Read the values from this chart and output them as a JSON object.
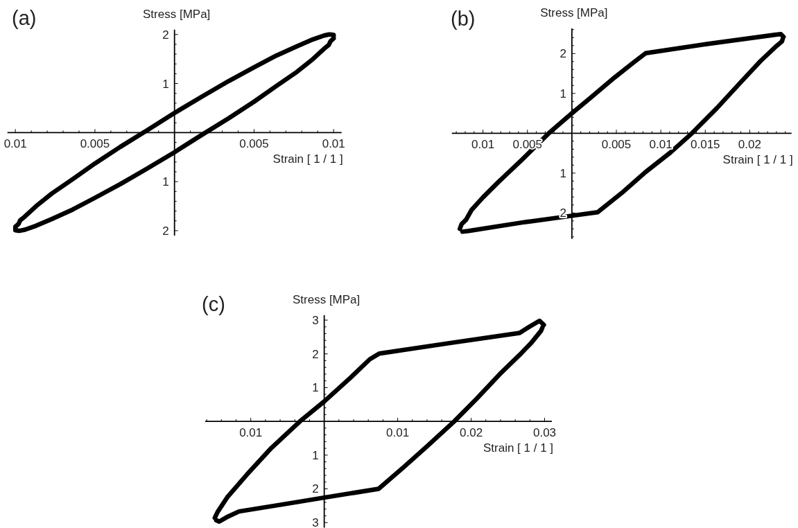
{
  "chart_data": [
    {
      "type": "line",
      "title": "(a)",
      "xlabel": "Strain [ 1 / 1 ]",
      "ylabel": "Stress [MPa]",
      "xlim": [
        -0.0105,
        0.0105
      ],
      "ylim": [
        -2.1,
        2.1
      ],
      "xticks": [
        {
          "value": -0.01,
          "label": "0.01"
        },
        {
          "value": -0.009,
          "label": null
        },
        {
          "value": -0.008,
          "label": null
        },
        {
          "value": -0.007,
          "label": null
        },
        {
          "value": -0.006,
          "label": null
        },
        {
          "value": -0.005,
          "label": "0.005"
        },
        {
          "value": -0.004,
          "label": null
        },
        {
          "value": -0.003,
          "label": null
        },
        {
          "value": -0.002,
          "label": null
        },
        {
          "value": -0.001,
          "label": null
        },
        {
          "value": 0.001,
          "label": null
        },
        {
          "value": 0.002,
          "label": null
        },
        {
          "value": 0.003,
          "label": null
        },
        {
          "value": 0.004,
          "label": null
        },
        0.005,
        {
          "value": 0.006,
          "label": null
        },
        {
          "value": 0.007,
          "label": null
        },
        {
          "value": 0.008,
          "label": null
        },
        {
          "value": 0.009,
          "label": null
        },
        0.01
      ],
      "yticks": [
        {
          "value": -2,
          "label": "2"
        },
        {
          "value": -1.8,
          "label": null
        },
        {
          "value": -1.6,
          "label": null
        },
        {
          "value": -1.4,
          "label": null
        },
        {
          "value": -1.2,
          "label": null
        },
        {
          "value": -1,
          "label": "1"
        },
        {
          "value": -0.8,
          "label": null
        },
        {
          "value": -0.6,
          "label": null
        },
        {
          "value": -0.4,
          "label": null
        },
        {
          "value": -0.2,
          "label": null
        },
        {
          "value": 0.2,
          "label": null
        },
        {
          "value": 0.4,
          "label": null
        },
        {
          "value": 0.6,
          "label": null
        },
        {
          "value": 0.8,
          "label": null
        },
        1,
        {
          "value": 1.2,
          "label": null
        },
        {
          "value": 1.4,
          "label": null
        },
        {
          "value": 1.6,
          "label": null
        },
        {
          "value": 1.8,
          "label": null
        },
        2
      ],
      "series": [
        {
          "color": "#000000",
          "x": [
            -0.01,
            -0.01,
            -0.0098,
            -0.0097,
            -0.0094,
            -0.0087,
            -0.0077,
            -0.0064,
            -0.005,
            -0.0034,
            -0.0017,
            0,
            0.0017,
            0.0034,
            0.005,
            0.0064,
            0.0077,
            0.0087,
            0.0094,
            0.0097,
            0.0098,
            0.01,
            0.01
          ],
          "values": [
            -1.96,
            -1.92,
            -1.86,
            -1.79,
            -1.71,
            -1.5,
            -1.24,
            -0.95,
            -0.63,
            -0.29,
            0.05,
            0.4,
            0.73,
            1.05,
            1.33,
            1.57,
            1.76,
            1.9,
            1.98,
            2.0,
            2.0,
            1.99,
            1.96
          ]
        },
        {
          "color": "#000000",
          "x": [
            0.01,
            0.0098,
            0.0097,
            0.0094,
            0.0087,
            0.0077,
            0.0064,
            0.005,
            0.0034,
            0.0017,
            0,
            -0.0017,
            -0.0034,
            -0.005,
            -0.0064,
            -0.0077,
            -0.0087,
            -0.0094,
            -0.0097,
            -0.0098,
            -0.01
          ],
          "values": [
            1.92,
            1.86,
            1.79,
            1.71,
            1.5,
            1.24,
            0.95,
            0.63,
            0.29,
            -0.05,
            -0.4,
            -0.73,
            -1.05,
            -1.33,
            -1.57,
            -1.76,
            -1.9,
            -1.98,
            -2.0,
            -2.0,
            -1.99
          ]
        }
      ]
    },
    {
      "type": "line",
      "title": "(b)",
      "xlabel": "Strain [ 1 / 1 ]",
      "ylabel": "Stress [MPa]",
      "xlim": [
        -0.0135,
        0.0247
      ],
      "ylim": [
        -2.65,
        2.63
      ],
      "xticks": [
        {
          "value": -0.013,
          "label": null
        },
        {
          "value": -0.012,
          "label": null
        },
        {
          "value": -0.011,
          "label": null
        },
        {
          "value": -0.01,
          "label": "0.01"
        },
        {
          "value": -0.009,
          "label": null
        },
        {
          "value": -0.008,
          "label": null
        },
        {
          "value": -0.007,
          "label": null
        },
        {
          "value": -0.006,
          "label": null
        },
        {
          "value": -0.005,
          "label": "0.005"
        },
        {
          "value": -0.004,
          "label": null
        },
        {
          "value": -0.003,
          "label": null
        },
        {
          "value": -0.002,
          "label": null
        },
        {
          "value": -0.001,
          "label": null
        },
        {
          "value": 0.001,
          "label": null
        },
        {
          "value": 0.002,
          "label": null
        },
        {
          "value": 0.003,
          "label": null
        },
        {
          "value": 0.004,
          "label": null
        },
        0.005,
        {
          "value": 0.006,
          "label": null
        },
        {
          "value": 0.007,
          "label": null
        },
        {
          "value": 0.008,
          "label": null
        },
        {
          "value": 0.009,
          "label": null
        },
        0.01,
        {
          "value": 0.011,
          "label": null
        },
        {
          "value": 0.012,
          "label": null
        },
        {
          "value": 0.013,
          "label": null
        },
        {
          "value": 0.014,
          "label": null
        },
        0.015,
        {
          "value": 0.016,
          "label": null
        },
        {
          "value": 0.017,
          "label": null
        },
        {
          "value": 0.018,
          "label": null
        },
        {
          "value": 0.019,
          "label": null
        },
        0.02,
        {
          "value": 0.021,
          "label": null
        },
        {
          "value": 0.022,
          "label": null
        },
        {
          "value": 0.023,
          "label": null
        },
        {
          "value": 0.024,
          "label": null
        }
      ],
      "yticks": [
        {
          "value": -2.6,
          "label": null
        },
        {
          "value": -2.4,
          "label": null
        },
        {
          "value": -2.2,
          "label": null
        },
        {
          "value": -2,
          "label": "2"
        },
        {
          "value": -1.8,
          "label": null
        },
        {
          "value": -1.6,
          "label": null
        },
        {
          "value": -1.4,
          "label": null
        },
        {
          "value": -1.2,
          "label": null
        },
        {
          "value": -1,
          "label": "1"
        },
        {
          "value": -0.8,
          "label": null
        },
        {
          "value": -0.6,
          "label": null
        },
        {
          "value": -0.4,
          "label": null
        },
        {
          "value": -0.2,
          "label": null
        },
        {
          "value": 0.2,
          "label": null
        },
        {
          "value": 0.4,
          "label": null
        },
        {
          "value": 0.6,
          "label": null
        },
        {
          "value": 0.8,
          "label": null
        },
        1,
        {
          "value": 1.2,
          "label": null
        },
        {
          "value": 1.4,
          "label": null
        },
        {
          "value": 1.6,
          "label": null
        },
        {
          "value": 1.8,
          "label": null
        },
        2,
        {
          "value": 2.2,
          "label": null
        },
        {
          "value": 2.4,
          "label": null
        },
        {
          "value": 2.6,
          "label": null
        }
      ],
      "series": [
        {
          "color": "#000000",
          "x": [
            -0.0126,
            -0.0124,
            -0.0119,
            -0.0113,
            -0.01,
            -0.0082,
            -0.0056,
            -0.0026,
            0,
            0.0022,
            0.0048,
            0.0069,
            0.0083,
            0.0152,
            0.0228,
            0.0235,
            0.0238
          ],
          "values": [
            -2.4,
            -2.28,
            -2.17,
            -1.93,
            -1.61,
            -1.21,
            -0.66,
            0,
            0.5,
            0.91,
            1.4,
            1.77,
            2.01,
            2.24,
            2.47,
            2.49,
            2.42
          ]
        },
        {
          "color": "#000000",
          "x": [
            0.0237,
            0.0236,
            0.023,
            0.0212,
            0.0189,
            0.0163,
            0.0135,
            0.0111,
            0.0083,
            0.0056,
            0.0029,
            0,
            -0.0056,
            -0.0116,
            -0.0123
          ],
          "values": [
            2.36,
            2.3,
            2.19,
            1.81,
            1.26,
            0.63,
            0,
            -0.48,
            -0.97,
            -1.5,
            -1.98,
            -2.07,
            -2.24,
            -2.45,
            -2.47
          ]
        }
      ]
    },
    {
      "type": "line",
      "title": "(c)",
      "xlabel": "Strain [ 1 / 1 ]",
      "ylabel": "Stress [MPa]",
      "xlim": [
        -0.0162,
        0.031
      ],
      "ylim": [
        -3.15,
        3.15
      ],
      "xticks": [
        {
          "value": -0.016,
          "label": null
        },
        {
          "value": -0.014,
          "label": null
        },
        {
          "value": -0.012,
          "label": null
        },
        {
          "value": -0.01,
          "label": "0.01"
        },
        {
          "value": -0.008,
          "label": null
        },
        {
          "value": -0.006,
          "label": null
        },
        {
          "value": -0.004,
          "label": null
        },
        {
          "value": -0.002,
          "label": null
        },
        {
          "value": 0.002,
          "label": null
        },
        {
          "value": 0.004,
          "label": null
        },
        {
          "value": 0.006,
          "label": null
        },
        {
          "value": 0.008,
          "label": null
        },
        0.01,
        {
          "value": 0.012,
          "label": null
        },
        {
          "value": 0.014,
          "label": null
        },
        {
          "value": 0.016,
          "label": null
        },
        {
          "value": 0.018,
          "label": null
        },
        0.02,
        {
          "value": 0.022,
          "label": null
        },
        {
          "value": 0.024,
          "label": null
        },
        {
          "value": 0.026,
          "label": null
        },
        {
          "value": 0.028,
          "label": null
        },
        0.03
      ],
      "yticks": [
        {
          "value": -3,
          "label": "3"
        },
        {
          "value": -2.8,
          "label": null
        },
        {
          "value": -2.6,
          "label": null
        },
        {
          "value": -2.4,
          "label": null
        },
        {
          "value": -2.2,
          "label": null
        },
        {
          "value": -2,
          "label": "2"
        },
        {
          "value": -1.8,
          "label": null
        },
        {
          "value": -1.6,
          "label": null
        },
        {
          "value": -1.4,
          "label": null
        },
        {
          "value": -1.2,
          "label": null
        },
        {
          "value": -1,
          "label": "1"
        },
        {
          "value": -0.8,
          "label": null
        },
        {
          "value": -0.6,
          "label": null
        },
        {
          "value": -0.4,
          "label": null
        },
        {
          "value": -0.2,
          "label": null
        },
        {
          "value": 0.2,
          "label": null
        },
        {
          "value": 0.4,
          "label": null
        },
        {
          "value": 0.6,
          "label": null
        },
        {
          "value": 0.8,
          "label": null
        },
        1,
        {
          "value": 1.2,
          "label": null
        },
        {
          "value": 1.4,
          "label": null
        },
        {
          "value": 1.6,
          "label": null
        },
        {
          "value": 1.8,
          "label": null
        },
        2,
        {
          "value": 2.2,
          "label": null
        },
        {
          "value": 2.4,
          "label": null
        },
        {
          "value": 2.6,
          "label": null
        },
        {
          "value": 2.8,
          "label": null
        },
        3
      ],
      "series": [
        {
          "color": "#000000",
          "x": [
            -0.0149,
            -0.0145,
            -0.0132,
            -0.0105,
            -0.0072,
            -0.0033,
            0,
            0.0036,
            0.0062,
            0.0075,
            0.0174,
            0.0266,
            0.0279,
            0.0293,
            0.0299
          ],
          "values": [
            -2.86,
            -2.68,
            -2.25,
            -1.57,
            -0.79,
            0,
            0.59,
            1.3,
            1.84,
            2.01,
            2.33,
            2.62,
            2.8,
            2.98,
            2.86
          ]
        },
        {
          "color": "#000000",
          "x": [
            0.0297,
            0.0295,
            0.0282,
            0.0266,
            0.0239,
            0.0207,
            0.0177,
            0.0141,
            0.0108,
            0.0074,
            0,
            -0.0056,
            -0.0116,
            -0.0131,
            -0.0143,
            -0.0147
          ],
          "values": [
            2.78,
            2.68,
            2.33,
            1.97,
            1.4,
            0.66,
            0,
            -0.72,
            -1.36,
            -2.0,
            -2.26,
            -2.46,
            -2.67,
            -2.82,
            -2.97,
            -2.93
          ]
        }
      ]
    }
  ]
}
